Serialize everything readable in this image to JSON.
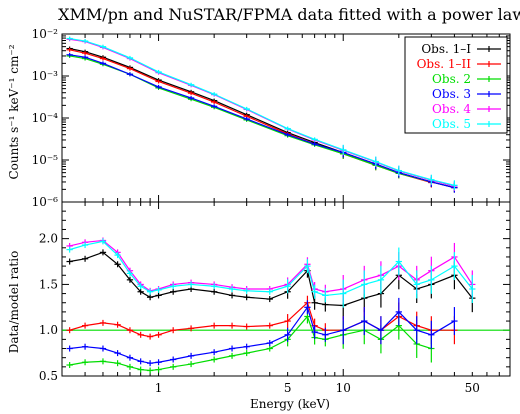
{
  "chart_data": [
    {
      "type": "scatter",
      "title": "XMM/pn and NuSTAR/FPMA data fitted with a power law",
      "xlabel": "",
      "ylabel": "Counts s⁻¹ keV⁻¹ cm⁻²",
      "xscale": "log",
      "yscale": "log",
      "xlim": [
        0.3,
        80
      ],
      "ylim": [
        1e-06,
        0.01
      ],
      "ytick_labels": [
        "10⁻⁶",
        "10⁻⁵",
        "10⁻⁴",
        "10⁻³",
        "10⁻²"
      ],
      "ytick_values": [
        1e-06,
        1e-05,
        0.0001,
        0.001,
        0.01
      ],
      "legend_position": "top-right",
      "series": [
        {
          "name": "Obs. 1–I",
          "color": "#000000",
          "x": [
            0.33,
            0.4,
            0.5,
            0.7,
            1.0,
            1.5,
            2.0,
            3.0,
            5.0,
            7.0,
            10.0,
            15.0,
            20.0,
            30.0,
            40.0
          ],
          "y": [
            0.0045,
            0.0038,
            0.0028,
            0.0016,
            0.0008,
            0.00042,
            0.00026,
            0.00012,
            4.5e-05,
            2.6e-05,
            1.5e-05,
            8e-06,
            5e-06,
            3e-06,
            2.2e-06
          ]
        },
        {
          "name": "Obs. 1–II",
          "color": "#ff0000",
          "x": [
            0.33,
            0.4,
            0.5,
            0.7,
            1.0,
            1.5,
            2.0,
            3.0,
            5.0,
            7.0,
            10.0,
            15.0,
            20.0,
            30.0
          ],
          "y": [
            0.0042,
            0.0035,
            0.0026,
            0.0015,
            0.00074,
            0.00039,
            0.00024,
            0.00011,
            4.2e-05,
            2.4e-05,
            1.4e-05,
            7.5e-06,
            4.8e-06,
            2.9e-06
          ]
        },
        {
          "name": "Obs. 2",
          "color": "#00dd00",
          "x": [
            0.33,
            0.4,
            0.5,
            0.7,
            1.0,
            1.5,
            2.0,
            3.0,
            5.0,
            7.0,
            10.0,
            15.0,
            20.0,
            30.0
          ],
          "y": [
            0.003,
            0.0026,
            0.0019,
            0.0011,
            0.00052,
            0.00028,
            0.00018,
            9e-05,
            3.8e-05,
            2.3e-05,
            1.4e-05,
            7.5e-06,
            4.8e-06,
            3e-06
          ]
        },
        {
          "name": "Obs. 3",
          "color": "#0000ff",
          "x": [
            0.33,
            0.4,
            0.5,
            0.7,
            1.0,
            1.5,
            2.0,
            3.0,
            5.0,
            7.0,
            10.0,
            15.0,
            20.0,
            30.0,
            40.0
          ],
          "y": [
            0.0032,
            0.0028,
            0.002,
            0.0011,
            0.00055,
            0.0003,
            0.00019,
            9.5e-05,
            4e-05,
            2.4e-05,
            1.5e-05,
            8e-06,
            5e-06,
            3e-06,
            2.2e-06
          ]
        },
        {
          "name": "Obs. 4",
          "color": "#ff00ff",
          "x": [
            0.33,
            0.4,
            0.5,
            0.7,
            1.0,
            1.5,
            2.0,
            3.0,
            5.0,
            7.0,
            10.0,
            15.0,
            20.0,
            30.0,
            40.0
          ],
          "y": [
            0.0075,
            0.0066,
            0.0048,
            0.0026,
            0.0012,
            0.0006,
            0.00036,
            0.00016,
            5.5e-05,
            3e-05,
            1.7e-05,
            9e-06,
            5.5e-06,
            3.3e-06,
            2.4e-06
          ]
        },
        {
          "name": "Obs. 5",
          "color": "#00ffff",
          "x": [
            0.33,
            0.4,
            0.5,
            0.7,
            1.0,
            1.5,
            2.0,
            3.0,
            5.0,
            7.0,
            10.0,
            15.0,
            20.0,
            30.0,
            40.0
          ],
          "y": [
            0.0078,
            0.0068,
            0.005,
            0.0027,
            0.00125,
            0.00062,
            0.00037,
            0.000165,
            5.6e-05,
            3.1e-05,
            1.75e-05,
            9.2e-06,
            5.6e-06,
            3.4e-06,
            2.5e-06
          ]
        }
      ]
    },
    {
      "type": "scatter",
      "xlabel": "Energy (keV)",
      "ylabel": "Data/model ratio",
      "xscale": "log",
      "xlim": [
        0.3,
        80
      ],
      "ylim": [
        0.5,
        2.4
      ],
      "xtick_labels": [
        "1",
        "5",
        "10",
        "50"
      ],
      "xtick_values": [
        1,
        5,
        10,
        50
      ],
      "ytick_labels": [
        "0.5",
        "1.0",
        "1.5",
        "2.0"
      ],
      "ytick_values": [
        0.5,
        1.0,
        1.5,
        2.0
      ],
      "reference_line": 1.0,
      "reference_color": "#00dd00",
      "series": [
        {
          "name": "Obs. 1–I",
          "color": "#000000",
          "x": [
            0.33,
            0.4,
            0.5,
            0.6,
            0.7,
            0.8,
            0.9,
            1.0,
            1.2,
            1.5,
            2.0,
            2.5,
            3.0,
            4.0,
            5.0,
            6.4,
            7.0,
            8.0,
            10.0,
            13.0,
            16.0,
            20.0,
            25.0,
            30.0,
            40.0,
            50.0
          ],
          "y": [
            1.75,
            1.78,
            1.85,
            1.72,
            1.55,
            1.42,
            1.36,
            1.38,
            1.42,
            1.45,
            1.42,
            1.38,
            1.36,
            1.34,
            1.42,
            1.65,
            1.3,
            1.28,
            1.27,
            1.35,
            1.4,
            1.6,
            1.45,
            1.5,
            1.6,
            1.35
          ]
        },
        {
          "name": "Obs. 1–II",
          "color": "#ff0000",
          "x": [
            0.33,
            0.4,
            0.5,
            0.6,
            0.7,
            0.8,
            0.9,
            1.0,
            1.2,
            1.5,
            2.0,
            2.5,
            3.0,
            4.0,
            5.0,
            6.4,
            7.0,
            8.0,
            10.0,
            13.0,
            16.0,
            20.0,
            25.0,
            30.0,
            40.0
          ],
          "y": [
            1.0,
            1.05,
            1.08,
            1.06,
            1.0,
            0.95,
            0.93,
            0.95,
            1.0,
            1.02,
            1.05,
            1.05,
            1.04,
            1.05,
            1.1,
            1.3,
            1.05,
            1.0,
            1.0,
            1.1,
            1.0,
            1.15,
            1.05,
            1.0,
            1.0
          ]
        },
        {
          "name": "Obs. 2",
          "color": "#00dd00",
          "x": [
            0.33,
            0.4,
            0.5,
            0.6,
            0.7,
            0.8,
            0.9,
            1.0,
            1.2,
            1.5,
            2.0,
            2.5,
            3.0,
            4.0,
            5.0,
            6.4,
            7.0,
            8.0,
            10.0,
            13.0,
            16.0,
            20.0,
            25.0,
            30.0
          ],
          "y": [
            0.62,
            0.65,
            0.66,
            0.64,
            0.6,
            0.57,
            0.56,
            0.57,
            0.6,
            0.63,
            0.68,
            0.72,
            0.75,
            0.8,
            0.9,
            1.15,
            0.92,
            0.9,
            0.95,
            1.0,
            0.9,
            1.05,
            0.85,
            0.8
          ]
        },
        {
          "name": "Obs. 3",
          "color": "#0000ff",
          "x": [
            0.33,
            0.4,
            0.5,
            0.6,
            0.7,
            0.8,
            0.9,
            1.0,
            1.2,
            1.5,
            2.0,
            2.5,
            3.0,
            4.0,
            5.0,
            6.4,
            7.0,
            8.0,
            10.0,
            13.0,
            16.0,
            20.0,
            25.0,
            30.0,
            40.0
          ],
          "y": [
            0.8,
            0.82,
            0.8,
            0.75,
            0.7,
            0.66,
            0.64,
            0.65,
            0.68,
            0.72,
            0.76,
            0.8,
            0.82,
            0.86,
            0.95,
            1.25,
            0.98,
            0.95,
            1.0,
            1.1,
            1.0,
            1.2,
            1.0,
            0.95,
            1.1
          ]
        },
        {
          "name": "Obs. 4",
          "color": "#ff00ff",
          "x": [
            0.33,
            0.4,
            0.5,
            0.6,
            0.7,
            0.8,
            0.9,
            1.0,
            1.2,
            1.5,
            2.0,
            2.5,
            3.0,
            4.0,
            5.0,
            6.4,
            7.0,
            8.0,
            10.0,
            13.0,
            16.0,
            20.0,
            25.0,
            30.0,
            40.0,
            50.0
          ],
          "y": [
            1.92,
            1.96,
            1.98,
            1.85,
            1.65,
            1.5,
            1.43,
            1.45,
            1.5,
            1.52,
            1.5,
            1.47,
            1.45,
            1.45,
            1.5,
            1.72,
            1.45,
            1.42,
            1.45,
            1.55,
            1.6,
            1.7,
            1.55,
            1.65,
            1.8,
            1.5
          ]
        },
        {
          "name": "Obs. 5",
          "color": "#00ffff",
          "x": [
            0.33,
            0.4,
            0.5,
            0.6,
            0.7,
            0.8,
            0.9,
            1.0,
            1.2,
            1.5,
            2.0,
            2.5,
            3.0,
            4.0,
            5.0,
            6.4,
            7.0,
            8.0,
            10.0,
            13.0,
            16.0,
            20.0,
            25.0,
            30.0,
            40.0,
            50.0
          ],
          "y": [
            1.88,
            1.93,
            1.97,
            1.82,
            1.62,
            1.48,
            1.42,
            1.44,
            1.48,
            1.5,
            1.48,
            1.45,
            1.43,
            1.42,
            1.48,
            1.7,
            1.42,
            1.38,
            1.4,
            1.5,
            1.55,
            1.75,
            1.5,
            1.55,
            1.7,
            1.45
          ]
        }
      ]
    }
  ]
}
